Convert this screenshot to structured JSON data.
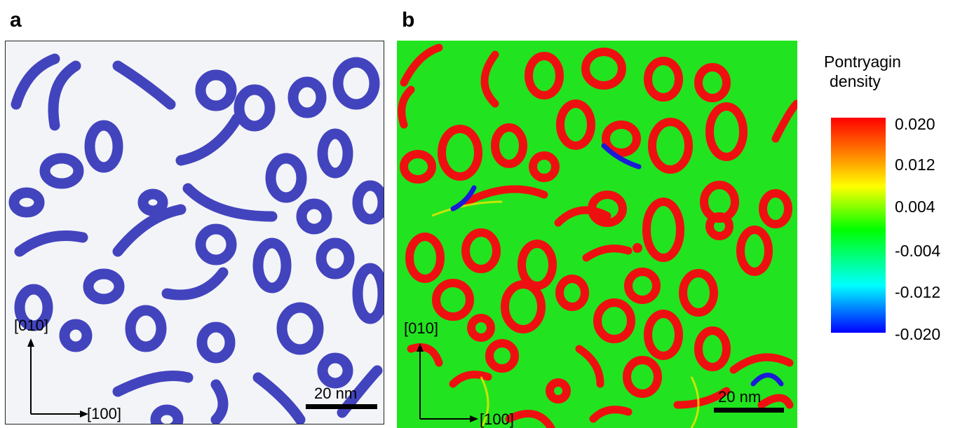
{
  "panel_a": {
    "label": "a",
    "axis_y": "[010]",
    "axis_x": "[100]",
    "scale": "20 nm"
  },
  "panel_b": {
    "label": "b",
    "axis_y": "[010]",
    "axis_x": "[100]",
    "scale": "20 nm"
  },
  "colorbar": {
    "title_line1": "Pontryagin",
    "title_line2": "density",
    "ticks": [
      "0.020",
      "0.012",
      "0.004",
      "-0.004",
      "-0.012",
      "-0.020"
    ],
    "colors": [
      "#ff0000",
      "#ff8c00",
      "#ffff00",
      "#00ff00",
      "#00ffff",
      "#0000ff"
    ]
  },
  "colors": {
    "panel_a_domain": "#2f31b8",
    "panel_b_background": "#22e31f",
    "panel_b_ring": "#ee1010",
    "panel_b_negative": "#1a1ad8"
  }
}
